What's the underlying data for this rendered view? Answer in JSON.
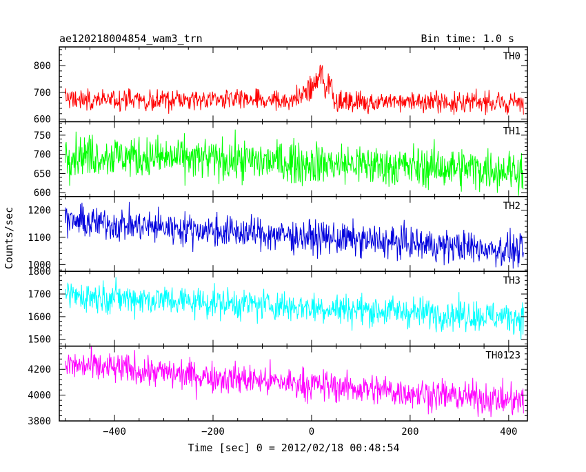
{
  "chart_data": {
    "type": "line",
    "title": "ae120218004854_wam3_trn",
    "subtitle": "Bin time: 1.0 s",
    "xlabel": "Time [sec] 0 = 2012/02/18 00:48:54",
    "ylabel": "Counts/sec",
    "xlim": [
      -512,
      438
    ],
    "x_ticks": [
      -400,
      -200,
      0,
      200,
      400
    ],
    "x_tick_labels": [
      "−400",
      "−200",
      "0",
      "200",
      "400"
    ],
    "grid": false,
    "legend": "none",
    "panels": [
      {
        "name": "TH0",
        "color": "#ff0000",
        "ylim": [
          590,
          870
        ],
        "y_ticks": [
          600,
          700,
          800
        ],
        "y_tick_labels": [
          "600",
          "700",
          "800"
        ],
        "x_range": [
          -500,
          430
        ],
        "trend": [
          [
            -500,
            675
          ],
          [
            430,
            660
          ]
        ],
        "noise": 28,
        "bursts": [
          {
            "x": -5,
            "amp": 40,
            "width": 25
          },
          {
            "x": 20,
            "amp": 90,
            "width": 14
          },
          {
            "x": 38,
            "amp": 70,
            "width": 6
          }
        ]
      },
      {
        "name": "TH1",
        "color": "#00ff00",
        "ylim": [
          590,
          785
        ],
        "y_ticks": [
          600,
          650,
          700,
          750
        ],
        "y_tick_labels": [
          "600",
          "650",
          "700",
          "750"
        ],
        "x_range": [
          -500,
          430
        ],
        "trend": [
          [
            -500,
            700
          ],
          [
            430,
            658
          ]
        ],
        "noise": 38
      },
      {
        "name": "TH2",
        "color": "#0000dd",
        "ylim": [
          975,
          1250
        ],
        "y_ticks": [
          1000,
          1100,
          1200
        ],
        "y_tick_labels": [
          "1000",
          "1100",
          "1200"
        ],
        "x_range": [
          -500,
          430
        ],
        "trend": [
          [
            -500,
            1160
          ],
          [
            430,
            1050
          ]
        ],
        "noise": 42
      },
      {
        "name": "TH3",
        "color": "#00ffff",
        "ylim": [
          1470,
          1800
        ],
        "y_ticks": [
          1500,
          1600,
          1700,
          1800
        ],
        "y_tick_labels": [
          "1500",
          "1600",
          "1700",
          "1800"
        ],
        "x_range": [
          -500,
          430
        ],
        "trend": [
          [
            -500,
            1695
          ],
          [
            430,
            1595
          ]
        ],
        "noise": 48
      },
      {
        "name": "TH0123",
        "color": "#ff00ff",
        "ylim": [
          3800,
          4380
        ],
        "y_ticks": [
          3800,
          4000,
          4200
        ],
        "y_tick_labels": [
          "3800",
          "4000",
          "4200"
        ],
        "x_range": [
          -500,
          430
        ],
        "trend": [
          [
            -500,
            4235
          ],
          [
            430,
            3950
          ]
        ],
        "noise": 85
      }
    ]
  }
}
